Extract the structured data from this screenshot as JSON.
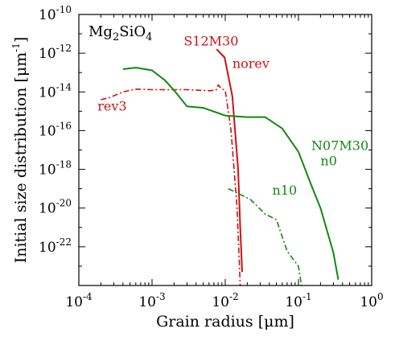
{
  "chart_data": {
    "type": "line",
    "title_parts": [
      {
        "t": "Mg",
        "s": "normal"
      },
      {
        "t": "2",
        "s": "sub"
      },
      {
        "t": "SiO",
        "s": "normal"
      },
      {
        "t": "4",
        "s": "sub"
      }
    ],
    "xlabel": "Grain radius [μm]",
    "ylabel": "Initial size distribution [μm",
    "ylabel_sup": "-1",
    "ylabel_end": "]",
    "x_scale": "log",
    "y_scale": "log",
    "xlim": [
      0.0001,
      1
    ],
    "ylim": [
      1e-24,
      1e-10
    ],
    "x_ticks": [
      {
        "base": "10",
        "exp": "-4",
        "value": 0.0001
      },
      {
        "base": "10",
        "exp": "-3",
        "value": 0.001
      },
      {
        "base": "10",
        "exp": "-2",
        "value": 0.01
      },
      {
        "base": "10",
        "exp": "-1",
        "value": 0.1
      },
      {
        "base": "10",
        "exp": "0",
        "value": 1
      }
    ],
    "y_ticks": [
      {
        "base": "10",
        "exp": "-10",
        "value": 1e-10
      },
      {
        "base": "10",
        "exp": "-12",
        "value": 1e-12
      },
      {
        "base": "10",
        "exp": "-14",
        "value": 1e-14
      },
      {
        "base": "10",
        "exp": "-16",
        "value": 1e-16
      },
      {
        "base": "10",
        "exp": "-18",
        "value": 1e-18
      },
      {
        "base": "10",
        "exp": "-20",
        "value": 1e-20
      },
      {
        "base": "10",
        "exp": "-22",
        "value": 1e-22
      }
    ],
    "grid": false,
    "colors": {
      "red": "#cc1111",
      "green": "#118811"
    },
    "series": [
      {
        "name": "norev",
        "color": "#cc1111",
        "dash": "solid",
        "x": [
          0.0076,
          0.0098,
          0.0125,
          0.015,
          0.016,
          0.017
        ],
        "y": [
          1.6e-12,
          6e-13,
          6e-15,
          1e-18,
          1e-21,
          5e-24
        ]
      },
      {
        "name": "rev3",
        "color": "#cc1111",
        "dash": "dashdot",
        "x": [
          0.0002,
          0.00026,
          0.0004,
          0.0006,
          0.001,
          0.003,
          0.006,
          0.0075,
          0.008,
          0.0088,
          0.01,
          0.012,
          0.0145,
          0.016
        ],
        "y": [
          4e-15,
          5e-15,
          1e-14,
          1.4e-14,
          1.3e-14,
          1.3e-14,
          1.15e-14,
          1.25e-14,
          2.3e-14,
          1.5e-14,
          1.2e-14,
          1e-16,
          1e-20,
          1e-24
        ]
      },
      {
        "name": "n0",
        "color": "#118811",
        "dash": "solid",
        "x": [
          0.0004,
          0.0006,
          0.001,
          0.0015,
          0.002,
          0.003,
          0.005,
          0.01,
          0.02,
          0.035,
          0.06,
          0.1,
          0.15,
          0.2,
          0.3,
          0.35
        ],
        "y": [
          1.5e-13,
          1.8e-13,
          1.3e-13,
          4e-14,
          1.2e-14,
          1.8e-15,
          1.5e-15,
          6e-16,
          5e-16,
          5e-16,
          1.3e-16,
          8e-18,
          1.5e-19,
          1e-20,
          5e-23,
          2e-24
        ]
      },
      {
        "name": "n10",
        "color": "#118811",
        "dash": "dashdot",
        "x": [
          0.011,
          0.022,
          0.035,
          0.05,
          0.07,
          0.08,
          0.1,
          0.11
        ],
        "y": [
          1e-19,
          2.8e-20,
          5e-21,
          2.5e-21,
          6e-23,
          3e-23,
          1e-23,
          1e-24
        ]
      }
    ],
    "annotations": [
      {
        "text": "S12M30",
        "color": "#cc1111",
        "x": 0.0064,
        "y": 2.5e-12,
        "anchor": "middle"
      },
      {
        "text": "norev",
        "color": "#cc1111",
        "x": 0.0125,
        "y": 1.7e-13,
        "anchor": "start"
      },
      {
        "text": "rev3",
        "color": "#cc1111",
        "x": 0.00018,
        "y": 1.1e-15,
        "anchor": "start"
      },
      {
        "text": "N07M30",
        "color": "#118811",
        "x": 0.15,
        "y": 1e-17,
        "anchor": "start"
      },
      {
        "text": "n0",
        "color": "#118811",
        "x": 0.2,
        "y": 1.6e-18,
        "anchor": "start"
      },
      {
        "text": "n10",
        "color": "#118811",
        "x": 0.044,
        "y": 5e-20,
        "anchor": "start"
      }
    ]
  }
}
